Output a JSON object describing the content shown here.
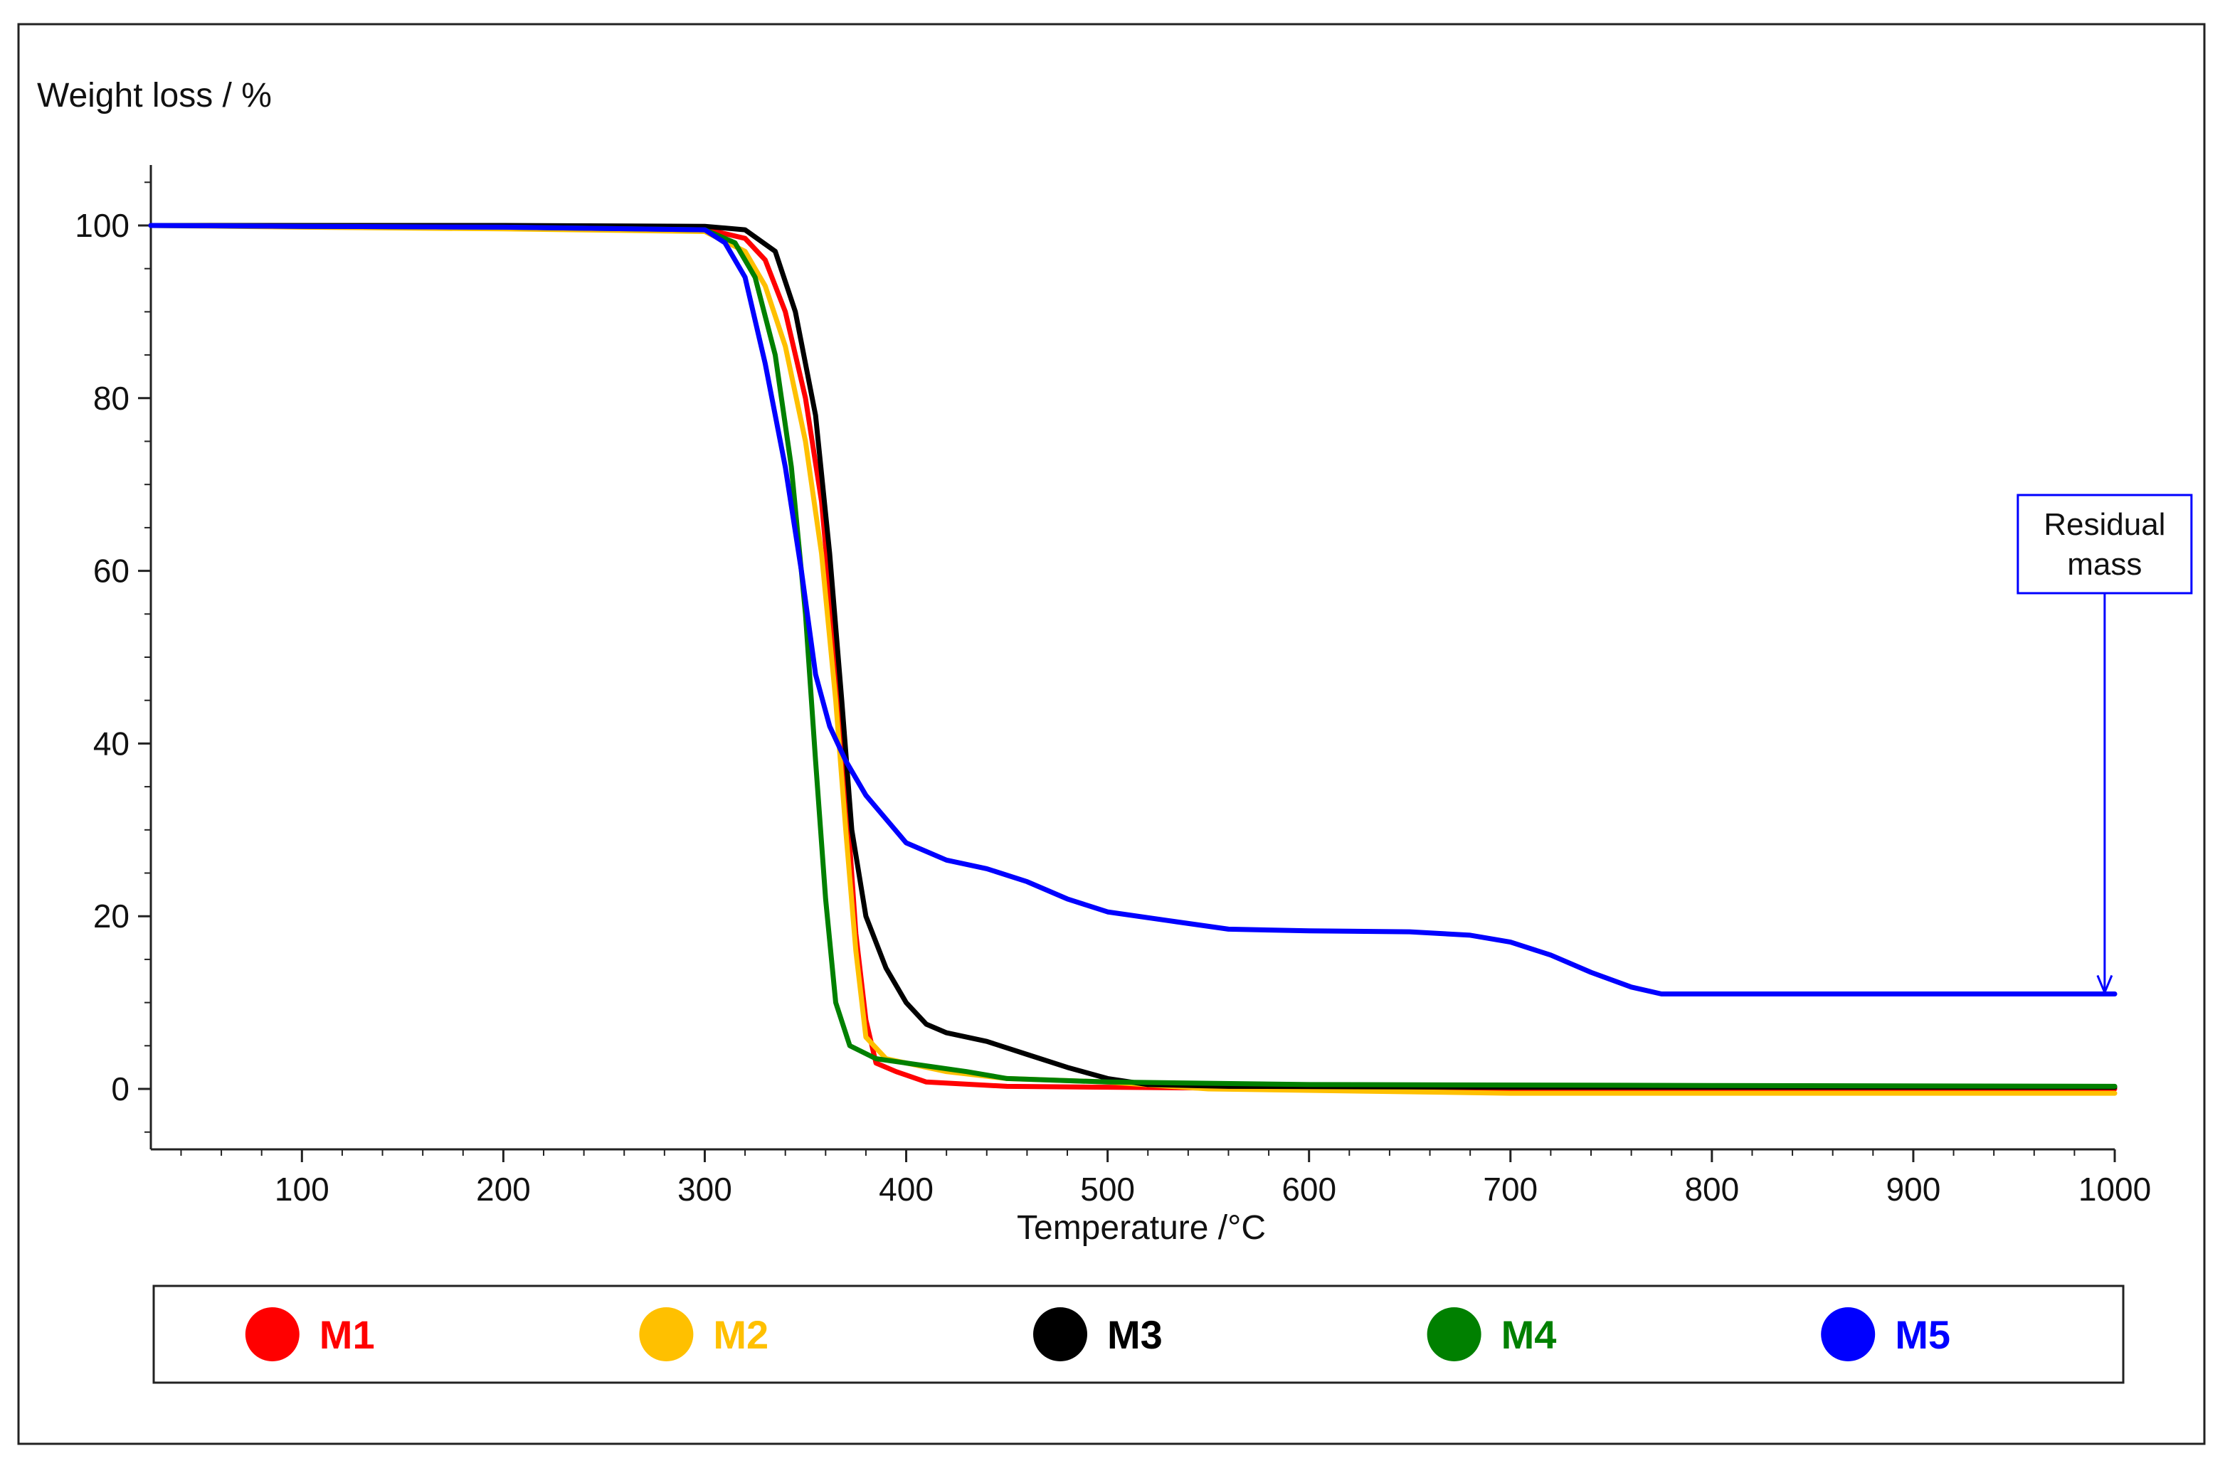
{
  "chart_data": {
    "type": "line",
    "title": "",
    "ylabel": "Weight loss / %",
    "xlabel": "Temperature /°C",
    "xlim": [
      25,
      1000
    ],
    "ylim": [
      -7,
      107
    ],
    "x_ticks": [
      100,
      200,
      300,
      400,
      500,
      600,
      700,
      800,
      900,
      1000
    ],
    "y_ticks": [
      0,
      20,
      40,
      60,
      80,
      100
    ],
    "grid": false,
    "legend_position": "bottom",
    "series": [
      {
        "name": "M1",
        "color": "#ff0000",
        "points": [
          [
            25,
            100
          ],
          [
            100,
            100
          ],
          [
            200,
            99.8
          ],
          [
            300,
            99.6
          ],
          [
            320,
            98.5
          ],
          [
            330,
            96
          ],
          [
            340,
            90
          ],
          [
            350,
            80
          ],
          [
            358,
            68
          ],
          [
            365,
            50
          ],
          [
            370,
            35
          ],
          [
            375,
            18
          ],
          [
            380,
            8
          ],
          [
            385,
            3
          ],
          [
            395,
            2
          ],
          [
            410,
            0.8
          ],
          [
            450,
            0.3
          ],
          [
            500,
            0.2
          ],
          [
            600,
            0
          ],
          [
            800,
            0
          ],
          [
            1000,
            0
          ]
        ]
      },
      {
        "name": "M2",
        "color": "#ffc000",
        "points": [
          [
            25,
            100
          ],
          [
            100,
            99.8
          ],
          [
            200,
            99.6
          ],
          [
            300,
            99.3
          ],
          [
            320,
            97
          ],
          [
            330,
            93
          ],
          [
            340,
            86
          ],
          [
            350,
            75
          ],
          [
            358,
            62
          ],
          [
            365,
            45
          ],
          [
            370,
            30
          ],
          [
            375,
            16
          ],
          [
            380,
            6
          ],
          [
            390,
            3.5
          ],
          [
            420,
            2
          ],
          [
            450,
            1.2
          ],
          [
            500,
            0.8
          ],
          [
            550,
            0
          ],
          [
            700,
            -0.5
          ],
          [
            1000,
            -0.5
          ]
        ]
      },
      {
        "name": "M3",
        "color": "#000000",
        "points": [
          [
            25,
            100
          ],
          [
            100,
            100
          ],
          [
            200,
            100
          ],
          [
            300,
            99.9
          ],
          [
            320,
            99.5
          ],
          [
            335,
            97
          ],
          [
            345,
            90
          ],
          [
            355,
            78
          ],
          [
            362,
            62
          ],
          [
            368,
            45
          ],
          [
            373,
            30
          ],
          [
            380,
            20
          ],
          [
            390,
            14
          ],
          [
            400,
            10
          ],
          [
            410,
            7.5
          ],
          [
            420,
            6.5
          ],
          [
            440,
            5.5
          ],
          [
            460,
            4
          ],
          [
            480,
            2.5
          ],
          [
            500,
            1.2
          ],
          [
            520,
            0.5
          ],
          [
            560,
            0.3
          ],
          [
            700,
            0.2
          ],
          [
            1000,
            0.2
          ]
        ]
      },
      {
        "name": "M4",
        "color": "#008000",
        "points": [
          [
            25,
            100
          ],
          [
            100,
            99.9
          ],
          [
            200,
            99.8
          ],
          [
            300,
            99.5
          ],
          [
            315,
            98
          ],
          [
            325,
            94
          ],
          [
            335,
            85
          ],
          [
            343,
            72
          ],
          [
            350,
            55
          ],
          [
            355,
            38
          ],
          [
            360,
            22
          ],
          [
            365,
            10
          ],
          [
            372,
            5
          ],
          [
            385,
            3.5
          ],
          [
            400,
            3
          ],
          [
            430,
            2
          ],
          [
            450,
            1.2
          ],
          [
            500,
            0.8
          ],
          [
            600,
            0.5
          ],
          [
            800,
            0.4
          ],
          [
            1000,
            0.3
          ]
        ]
      },
      {
        "name": "M5",
        "color": "#0000ff",
        "points": [
          [
            25,
            100
          ],
          [
            100,
            99.9
          ],
          [
            200,
            99.8
          ],
          [
            300,
            99.5
          ],
          [
            310,
            98
          ],
          [
            320,
            94
          ],
          [
            330,
            84
          ],
          [
            340,
            72
          ],
          [
            348,
            60
          ],
          [
            355,
            48
          ],
          [
            362,
            42
          ],
          [
            370,
            38
          ],
          [
            380,
            34
          ],
          [
            400,
            28.5
          ],
          [
            420,
            26.5
          ],
          [
            440,
            25.5
          ],
          [
            460,
            24
          ],
          [
            480,
            22
          ],
          [
            500,
            20.5
          ],
          [
            530,
            19.5
          ],
          [
            560,
            18.5
          ],
          [
            600,
            18.3
          ],
          [
            650,
            18.2
          ],
          [
            680,
            17.8
          ],
          [
            700,
            17
          ],
          [
            720,
            15.5
          ],
          [
            740,
            13.5
          ],
          [
            760,
            11.8
          ],
          [
            775,
            11
          ],
          [
            800,
            11
          ],
          [
            900,
            11
          ],
          [
            1000,
            11
          ]
        ]
      }
    ],
    "annotations": [
      {
        "text_lines": [
          "Residual",
          "mass"
        ],
        "arrow_to": [
          995,
          11
        ]
      }
    ]
  }
}
